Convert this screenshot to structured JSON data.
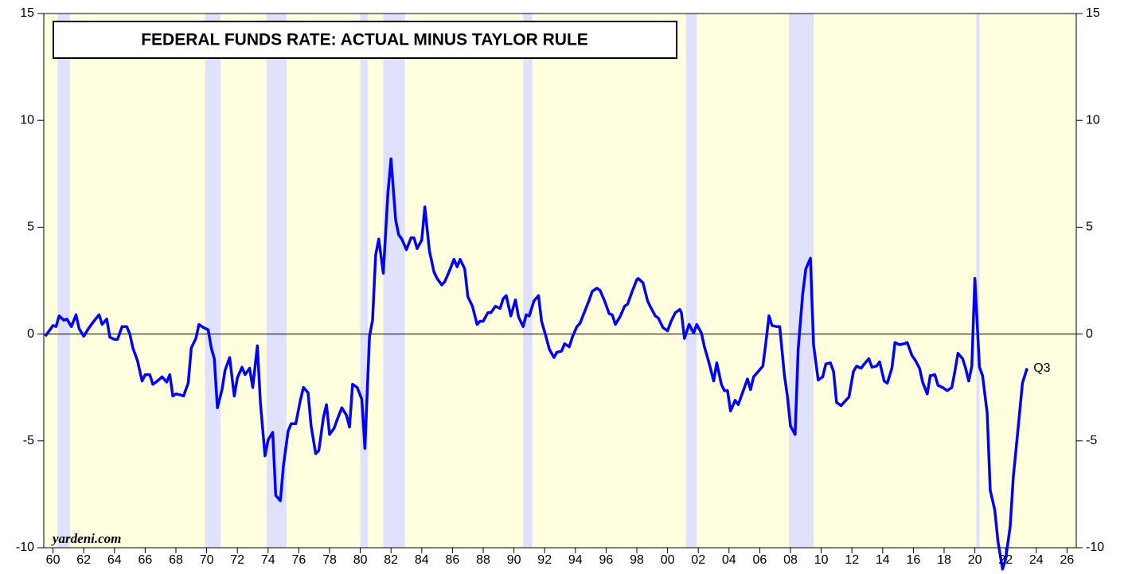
{
  "chart_data": {
    "type": "line",
    "title": "FEDERAL FUNDS RATE: ACTUAL MINUS TAYLOR RULE",
    "source": "yardeni.com",
    "end_label": "Q3",
    "background_color": "#ffffe0",
    "recession_color": "#e0e0ff",
    "recessions": [
      [
        1960.3,
        1961.1
      ],
      [
        1969.9,
        1970.9
      ],
      [
        1973.9,
        1975.2
      ],
      [
        1980.0,
        1980.5
      ],
      [
        1981.5,
        1982.9
      ],
      [
        1990.6,
        1991.2
      ],
      [
        2001.2,
        2001.9
      ],
      [
        2007.9,
        2009.5
      ],
      [
        2020.1,
        2020.3
      ]
    ],
    "zero_line": 0,
    "xlim": [
      1959.4,
      2026.6
    ],
    "ylim": [
      -10,
      15
    ],
    "yticks": [
      -10,
      -5,
      0,
      5,
      10,
      15
    ],
    "xticks": [
      {
        "value": 1960,
        "label": "60"
      },
      {
        "value": 1962,
        "label": "62"
      },
      {
        "value": 1964,
        "label": "64"
      },
      {
        "value": 1966,
        "label": "66"
      },
      {
        "value": 1968,
        "label": "68"
      },
      {
        "value": 1970,
        "label": "70"
      },
      {
        "value": 1972,
        "label": "72"
      },
      {
        "value": 1974,
        "label": "74"
      },
      {
        "value": 1976,
        "label": "76"
      },
      {
        "value": 1978,
        "label": "78"
      },
      {
        "value": 1980,
        "label": "80"
      },
      {
        "value": 1982,
        "label": "82"
      },
      {
        "value": 1984,
        "label": "84"
      },
      {
        "value": 1986,
        "label": "86"
      },
      {
        "value": 1988,
        "label": "88"
      },
      {
        "value": 1990,
        "label": "90"
      },
      {
        "value": 1992,
        "label": "92"
      },
      {
        "value": 1994,
        "label": "94"
      },
      {
        "value": 1996,
        "label": "96"
      },
      {
        "value": 1998,
        "label": "98"
      },
      {
        "value": 2000,
        "label": "00"
      },
      {
        "value": 2002,
        "label": "02"
      },
      {
        "value": 2004,
        "label": "04"
      },
      {
        "value": 2006,
        "label": "06"
      },
      {
        "value": 2008,
        "label": "08"
      },
      {
        "value": 2010,
        "label": "10"
      },
      {
        "value": 2012,
        "label": "12"
      },
      {
        "value": 2014,
        "label": "14"
      },
      {
        "value": 2016,
        "label": "16"
      },
      {
        "value": 2018,
        "label": "18"
      },
      {
        "value": 2020,
        "label": "20"
      },
      {
        "value": 2022,
        "label": "22"
      },
      {
        "value": 2024,
        "label": "24"
      },
      {
        "value": 2026,
        "label": "26"
      }
    ],
    "x": [
      1959.5,
      1960.0,
      1960.2,
      1960.4,
      1960.7,
      1960.9,
      1961.2,
      1961.5,
      1961.7,
      1962.0,
      1962.3,
      1962.6,
      1963.0,
      1963.2,
      1963.5,
      1963.7,
      1964.0,
      1964.2,
      1964.5,
      1964.8,
      1965.0,
      1965.2,
      1965.5,
      1965.8,
      1966.0,
      1966.3,
      1966.5,
      1966.8,
      1967.1,
      1967.4,
      1967.6,
      1967.8,
      1968.0,
      1968.3,
      1968.5,
      1968.8,
      1969.0,
      1969.3,
      1969.5,
      1969.8,
      1970.1,
      1970.3,
      1970.5,
      1970.7,
      1971.0,
      1971.2,
      1971.5,
      1971.8,
      1972.0,
      1972.3,
      1972.5,
      1972.8,
      1973.0,
      1973.3,
      1973.5,
      1973.8,
      1974.0,
      1974.3,
      1974.5,
      1974.8,
      1975.0,
      1975.3,
      1975.5,
      1975.8,
      1976.1,
      1976.3,
      1976.6,
      1976.8,
      1977.1,
      1977.3,
      1977.6,
      1977.8,
      1978.0,
      1978.3,
      1978.5,
      1978.8,
      1979.1,
      1979.3,
      1979.5,
      1979.8,
      1980.1,
      1980.3,
      1980.6,
      1980.8,
      1981.0,
      1981.2,
      1981.5,
      1981.8,
      1982.0,
      1982.3,
      1982.5,
      1982.7,
      1983.0,
      1983.3,
      1983.5,
      1983.7,
      1984.0,
      1984.2,
      1984.5,
      1984.8,
      1985.0,
      1985.3,
      1985.5,
      1985.8,
      1986.1,
      1986.3,
      1986.5,
      1986.8,
      1987.0,
      1987.3,
      1987.6,
      1987.8,
      1988.0,
      1988.3,
      1988.5,
      1988.8,
      1989.1,
      1989.3,
      1989.5,
      1989.8,
      1990.1,
      1990.3,
      1990.6,
      1990.8,
      1991.0,
      1991.3,
      1991.6,
      1991.8,
      1992.1,
      1992.3,
      1992.6,
      1992.8,
      1993.1,
      1993.3,
      1993.6,
      1993.8,
      1994.1,
      1994.3,
      1994.6,
      1994.9,
      1995.1,
      1995.4,
      1995.6,
      1995.9,
      1996.2,
      1996.4,
      1996.6,
      1996.9,
      1997.2,
      1997.4,
      1997.7,
      1998.0,
      1998.1,
      1998.4,
      1998.7,
      1998.9,
      1999.2,
      1999.4,
      1999.7,
      2000.0,
      2000.2,
      2000.5,
      2000.8,
      2000.9,
      2001.1,
      2001.4,
      2001.7,
      2001.9,
      2002.2,
      2002.4,
      2002.7,
      2003.0,
      2003.2,
      2003.5,
      2003.7,
      2003.9,
      2004.1,
      2004.4,
      2004.6,
      2004.9,
      2005.2,
      2005.4,
      2005.6,
      2005.9,
      2006.2,
      2006.4,
      2006.6,
      2006.8,
      2007.1,
      2007.3,
      2007.6,
      2007.8,
      2008.0,
      2008.3,
      2008.5,
      2008.8,
      2009.0,
      2009.3,
      2009.5,
      2009.8,
      2010.1,
      2010.3,
      2010.6,
      2010.8,
      2011.0,
      2011.3,
      2011.6,
      2011.8,
      2012.1,
      2012.3,
      2012.6,
      2012.8,
      2013.1,
      2013.3,
      2013.6,
      2013.8,
      2014.1,
      2014.3,
      2014.6,
      2014.8,
      2015.1,
      2015.4,
      2015.6,
      2015.9,
      2016.1,
      2016.4,
      2016.6,
      2016.9,
      2017.1,
      2017.4,
      2017.6,
      2017.9,
      2018.2,
      2018.5,
      2018.7,
      2018.9,
      2019.2,
      2019.4,
      2019.6,
      2019.8,
      2020.0,
      2020.3,
      2020.5,
      2020.8,
      2021.0,
      2021.3,
      2021.5,
      2021.8,
      2022.0,
      2022.3,
      2022.5,
      2022.8,
      2023.1,
      2023.4
    ],
    "series": [
      {
        "name": "Actual minus Taylor rule",
        "color": "#0000ff",
        "values": [
          -0.1,
          0.4,
          0.35,
          0.85,
          0.65,
          0.7,
          0.35,
          0.9,
          0.25,
          -0.1,
          0.25,
          0.55,
          0.9,
          0.45,
          0.7,
          -0.15,
          -0.25,
          -0.25,
          0.35,
          0.35,
          0,
          -0.65,
          -1.25,
          -2.2,
          -1.9,
          -1.9,
          -2.35,
          -2.2,
          -2.0,
          -2.25,
          -1.9,
          -2.9,
          -2.8,
          -2.85,
          -2.9,
          -2.3,
          -0.65,
          -0.2,
          0.45,
          0.3,
          0.2,
          -0.65,
          -1.15,
          -3.45,
          -2.6,
          -1.7,
          -1.1,
          -2.9,
          -2.05,
          -1.55,
          -1.9,
          -1.6,
          -2.5,
          -0.55,
          -3.2,
          -5.7,
          -4.95,
          -4.6,
          -7.55,
          -7.8,
          -6.15,
          -4.55,
          -4.2,
          -4.2,
          -3.1,
          -2.5,
          -2.75,
          -4.3,
          -5.6,
          -5.45,
          -3.9,
          -3.3,
          -4.7,
          -4.4,
          -4.0,
          -3.45,
          -3.8,
          -4.35,
          -2.35,
          -2.5,
          -3.05,
          -5.35,
          -0.1,
          0.65,
          3.7,
          4.45,
          2.85,
          6.6,
          8.2,
          5.35,
          4.65,
          4.45,
          3.95,
          4.5,
          4.5,
          4.0,
          4.4,
          5.95,
          3.9,
          2.9,
          2.6,
          2.3,
          2.45,
          2.95,
          3.5,
          3.15,
          3.5,
          3.05,
          1.75,
          1.3,
          0.45,
          0.6,
          0.6,
          1.0,
          1.0,
          1.3,
          1.2,
          1.65,
          1.8,
          0.85,
          1.6,
          0.8,
          0.35,
          0.9,
          0.85,
          1.55,
          1.8,
          0.6,
          -0.15,
          -0.7,
          -1.1,
          -0.85,
          -0.8,
          -0.45,
          -0.6,
          -0.15,
          0.35,
          0.5,
          1.05,
          1.6,
          2.0,
          2.15,
          2.05,
          1.55,
          0.95,
          0.9,
          0.45,
          0.8,
          1.3,
          1.4,
          2.0,
          2.55,
          2.6,
          2.4,
          1.55,
          1.25,
          0.85,
          0.75,
          0.3,
          0.15,
          0.55,
          1.0,
          1.15,
          1.0,
          -0.2,
          0.45,
          0.05,
          0.45,
          0.05,
          -0.6,
          -1.35,
          -2.2,
          -1.35,
          -2.35,
          -2.65,
          -2.65,
          -3.6,
          -3.1,
          -3.3,
          -2.7,
          -2.1,
          -2.6,
          -2.0,
          -1.75,
          -1.5,
          -0.4,
          0.85,
          0.4,
          0.35,
          0.35,
          -1.9,
          -2.9,
          -4.3,
          -4.7,
          -0.7,
          1.9,
          3.05,
          3.55,
          -0.5,
          -2.15,
          -2.0,
          -1.4,
          -1.35,
          -1.75,
          -3.2,
          -3.35,
          -3.1,
          -2.95,
          -1.75,
          -1.5,
          -1.6,
          -1.4,
          -1.15,
          -1.55,
          -1.5,
          -1.3,
          -2.2,
          -2.3,
          -1.6,
          -0.4,
          -0.5,
          -0.45,
          -0.4,
          -1.0,
          -1.2,
          -1.6,
          -2.25,
          -2.8,
          -1.95,
          -1.9,
          -2.4,
          -2.5,
          -2.65,
          -2.5,
          -1.75,
          -0.9,
          -1.15,
          -1.6,
          -2.2,
          -1.5,
          2.6,
          -1.55,
          -1.95,
          -3.7,
          -7.3,
          -8.25,
          -9.7,
          -11.0,
          -10.55,
          -9.0,
          -6.7,
          -4.5,
          -2.3,
          -1.6
        ]
      }
    ]
  }
}
